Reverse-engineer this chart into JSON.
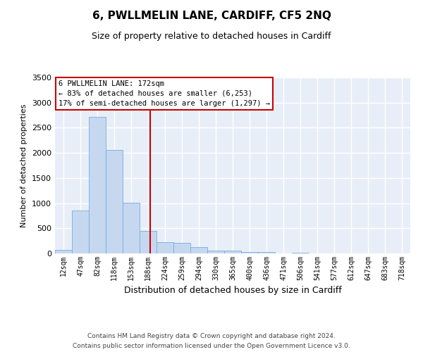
{
  "title": "6, PWLLMELIN LANE, CARDIFF, CF5 2NQ",
  "subtitle": "Size of property relative to detached houses in Cardiff",
  "xlabel": "Distribution of detached houses by size in Cardiff",
  "ylabel": "Number of detached properties",
  "bar_color": "#c5d8f0",
  "bar_edge_color": "#7aaadd",
  "bin_labels": [
    "12sqm",
    "47sqm",
    "82sqm",
    "118sqm",
    "153sqm",
    "188sqm",
    "224sqm",
    "259sqm",
    "294sqm",
    "330sqm",
    "365sqm",
    "400sqm",
    "436sqm",
    "471sqm",
    "506sqm",
    "541sqm",
    "577sqm",
    "612sqm",
    "647sqm",
    "683sqm",
    "718sqm"
  ],
  "bar_heights": [
    65,
    860,
    2720,
    2060,
    1010,
    455,
    220,
    215,
    130,
    60,
    50,
    35,
    25,
    5,
    10,
    0,
    0,
    0,
    0,
    0,
    0
  ],
  "vline_x_index": 5.14,
  "vline_color": "#cc0000",
  "annotation_line1": "6 PWLLMELIN LANE: 172sqm",
  "annotation_line2": "← 83% of detached houses are smaller (6,253)",
  "annotation_line3": "17% of semi-detached houses are larger (1,297) →",
  "annotation_box_color": "#cc0000",
  "ylim": [
    0,
    3500
  ],
  "yticks": [
    0,
    500,
    1000,
    1500,
    2000,
    2500,
    3000,
    3500
  ],
  "footer_line1": "Contains HM Land Registry data © Crown copyright and database right 2024.",
  "footer_line2": "Contains public sector information licensed under the Open Government Licence v3.0.",
  "background_color": "#e8eef8",
  "grid_color": "#ffffff"
}
